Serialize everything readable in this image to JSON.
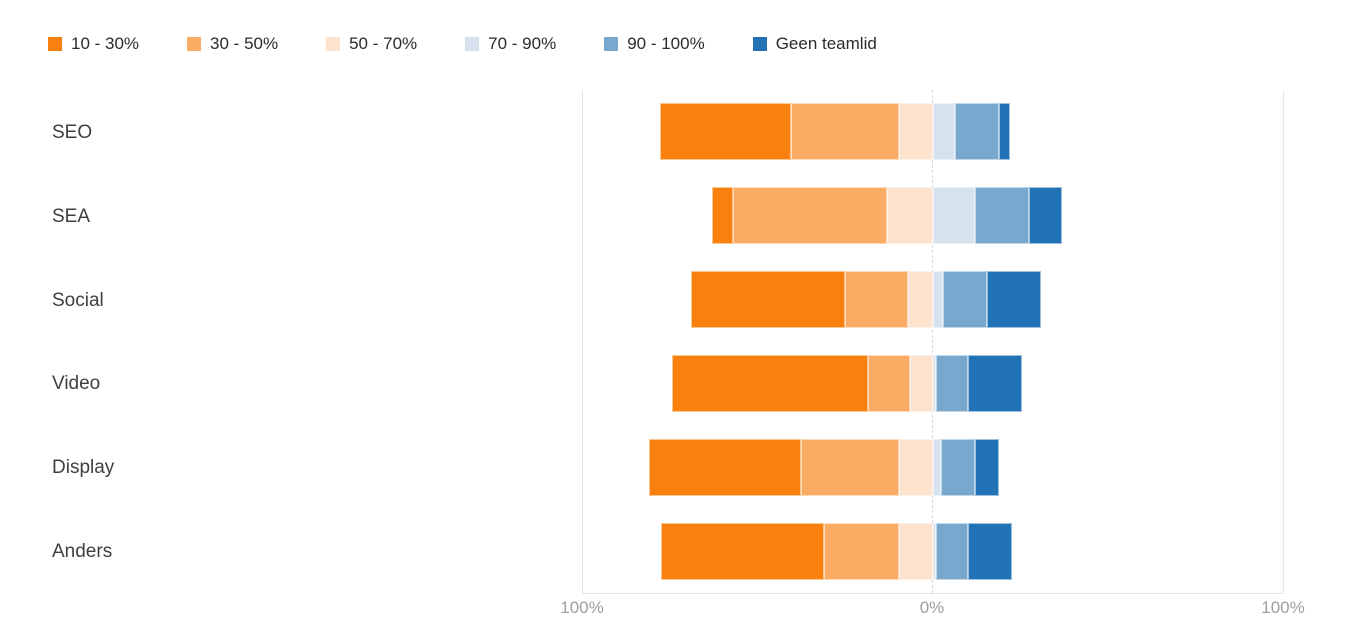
{
  "chart_data": {
    "type": "bar",
    "variant": "horizontal-diverging-stacked",
    "title": "",
    "categories": [
      "SEO",
      "SEA",
      "Social",
      "Video",
      "Display",
      "Anders"
    ],
    "series": [
      {
        "name": "10 - 30%",
        "color": "#F8800E",
        "side": "left",
        "values": [
          37.5,
          6,
          44,
          56,
          43.5,
          46.5
        ]
      },
      {
        "name": "30 - 50%",
        "color": "#FBAC64",
        "side": "left",
        "values": [
          31,
          44,
          18,
          12,
          28,
          21.5
        ]
      },
      {
        "name": "50 - 70%",
        "color": "#FDE2CD",
        "side": "left",
        "values": [
          9.5,
          13,
          7,
          6.5,
          9.5,
          9.5
        ]
      },
      {
        "name": "70 - 90%",
        "color": "#D6E3EF",
        "side": "right",
        "values": [
          6.5,
          12,
          3,
          1,
          2.5,
          1
        ]
      },
      {
        "name": "90 - 100%",
        "color": "#78A8CE",
        "side": "right",
        "values": [
          12.5,
          15.5,
          12.5,
          9,
          9.5,
          9
        ]
      },
      {
        "name": "Geen teamlid",
        "color": "#2273B5",
        "side": "right",
        "values": [
          3,
          9.5,
          15.5,
          15.5,
          7,
          12.5
        ]
      }
    ],
    "axis": {
      "tick_left": "100%",
      "tick_center": "0%",
      "tick_right": "100%",
      "xlim": [
        -100,
        100
      ],
      "unit": "%",
      "left_series_count": 3
    },
    "legend_position": "top-left",
    "grid": {
      "left_line": "solid",
      "center_line": "dashed",
      "right_line": "solid",
      "baseline": "solid"
    }
  },
  "colors": {
    "background": "#FFFFFF",
    "gridline": "#E6E6E6",
    "center_dashed_line": "#D8D8D8",
    "category_text": "#3F3F3F",
    "axis_text": "#9E9E9E",
    "legend_text": "#2B2B2B"
  }
}
